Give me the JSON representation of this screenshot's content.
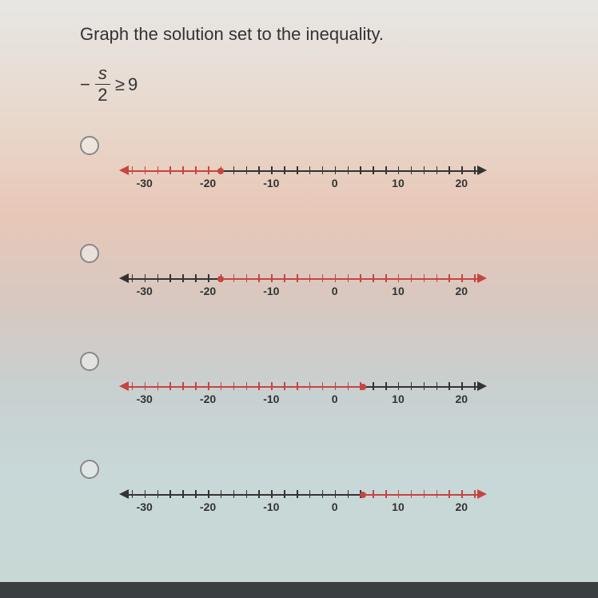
{
  "question": "Graph the solution set to the inequality.",
  "inequality": {
    "minus": "−",
    "numerator": "s",
    "denominator": "2",
    "rel": "≥",
    "rhs": "9"
  },
  "line_config": {
    "min": -34,
    "max": 24,
    "labels": [
      -30,
      -20,
      -10,
      0,
      10,
      20
    ],
    "tick_step": 2,
    "colors": {
      "red": "#c74440",
      "dark": "#333333"
    }
  },
  "options": [
    {
      "point": -18,
      "red_side": "left",
      "dark_side": "right"
    },
    {
      "point": -18,
      "red_side": "right",
      "dark_side": "left"
    },
    {
      "point": 4.5,
      "red_side": "left",
      "dark_side": "right"
    },
    {
      "point": 4.5,
      "red_side": "right",
      "dark_side": "left"
    }
  ]
}
